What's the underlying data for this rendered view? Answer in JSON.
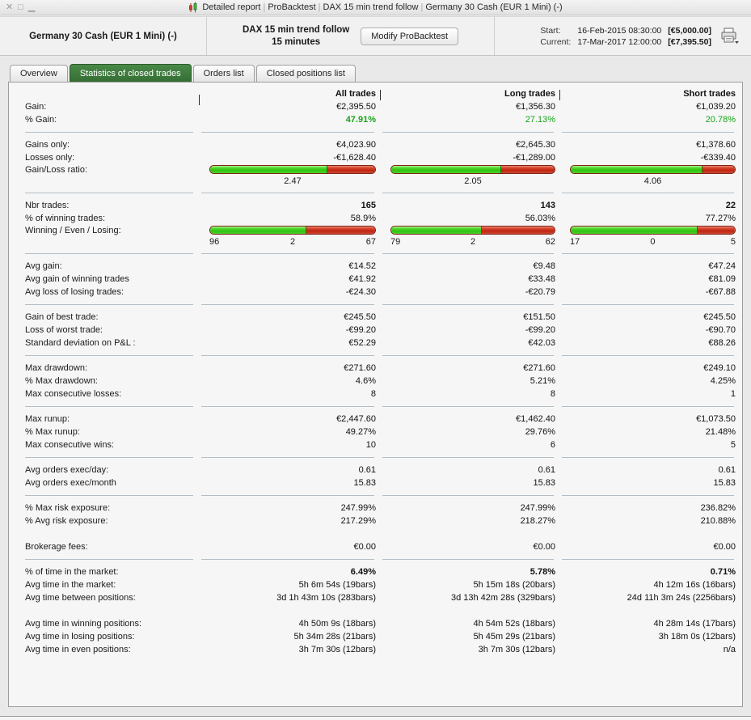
{
  "titlebar": {
    "window_controls": [
      "✕",
      "□",
      "▁"
    ],
    "title_parts": [
      "Detailed report",
      "ProBacktest",
      "DAX 15 min trend follow",
      "Germany 30 Cash (EUR 1 Mini) (-)"
    ]
  },
  "header": {
    "instrument": "Germany 30 Cash (EUR 1 Mini) (-)",
    "strategy_line1": "DAX 15 min trend follow",
    "strategy_line2": "15 minutes",
    "modify_button": "Modify ProBacktest",
    "start_label": "Start:",
    "start_datetime": "16-Feb-2015 08:30:00",
    "start_value": "[€5,000.00]",
    "current_label": "Current:",
    "current_datetime": "17-Mar-2017 12:00:00",
    "current_value": "[€7,395.50]"
  },
  "tabs": [
    {
      "label": "Overview",
      "active": false
    },
    {
      "label": "Statistics of closed trades",
      "active": true
    },
    {
      "label": "Orders list",
      "active": false
    },
    {
      "label": "Closed positions list",
      "active": false
    }
  ],
  "colors": {
    "active_tab_green": "#3c7b3b",
    "text_green": "#17a317",
    "bar_green": "#2fc410",
    "bar_red": "#c02511",
    "divider": "#b3bfc8"
  },
  "table": {
    "columns": [
      "All trades",
      "Long trades",
      "Short trades"
    ],
    "sections": [
      {
        "rows": [
          {
            "label": "Gain:",
            "values": [
              "€2,395.50",
              "€1,356.30",
              "€1,039.20"
            ]
          },
          {
            "label": "% Gain:",
            "values": [
              "47.91%",
              "27.13%",
              "20.78%"
            ],
            "cls": [
              "g b",
              "g",
              "g"
            ]
          }
        ]
      },
      {
        "rows": [
          {
            "label": "Gains only:",
            "values": [
              "€4,023.90",
              "€2,645.30",
              "€1,378.60"
            ]
          },
          {
            "label": "Losses only:",
            "values": [
              "-€1,628.40",
              "-€1,289.00",
              "-€339.40"
            ]
          },
          {
            "label": "Gain/Loss ratio:",
            "type": "ratio_bar",
            "values": [
              2.47,
              2.05,
              4.06
            ]
          }
        ]
      },
      {
        "rows": [
          {
            "label": "Nbr trades:",
            "values": [
              "165",
              "143",
              "22"
            ],
            "cls": [
              "b",
              "b",
              "b"
            ]
          },
          {
            "label": "% of winning trades:",
            "values": [
              "58.9%",
              "56.03%",
              "77.27%"
            ]
          },
          {
            "label": "Winning / Even / Losing:",
            "type": "wel_bar",
            "values": [
              [
                96,
                2,
                67
              ],
              [
                79,
                2,
                62
              ],
              [
                17,
                0,
                5
              ]
            ]
          }
        ]
      },
      {
        "rows": [
          {
            "label": "Avg gain:",
            "values": [
              "€14.52",
              "€9.48",
              "€47.24"
            ]
          },
          {
            "label": "Avg gain of winning trades",
            "values": [
              "€41.92",
              "€33.48",
              "€81.09"
            ]
          },
          {
            "label": "Avg loss of losing trades:",
            "values": [
              "-€24.30",
              "-€20.79",
              "-€67.88"
            ]
          }
        ]
      },
      {
        "rows": [
          {
            "label": "Gain of best trade:",
            "values": [
              "€245.50",
              "€151.50",
              "€245.50"
            ]
          },
          {
            "label": "Loss of worst trade:",
            "values": [
              "-€99.20",
              "-€99.20",
              "-€90.70"
            ]
          },
          {
            "label": "Standard deviation on P&L :",
            "values": [
              "€52.29",
              "€42.03",
              "€88.26"
            ]
          }
        ]
      },
      {
        "rows": [
          {
            "label": "Max drawdown:",
            "values": [
              "€271.60",
              "€271.60",
              "€249.10"
            ]
          },
          {
            "label": "% Max drawdown:",
            "values": [
              "4.6%",
              "5.21%",
              "4.25%"
            ]
          },
          {
            "label": "Max consecutive losses:",
            "values": [
              "8",
              "8",
              "1"
            ]
          }
        ]
      },
      {
        "rows": [
          {
            "label": "Max runup:",
            "values": [
              "€2,447.60",
              "€1,462.40",
              "€1,073.50"
            ]
          },
          {
            "label": "% Max runup:",
            "values": [
              "49.27%",
              "29.76%",
              "21.48%"
            ]
          },
          {
            "label": "Max consecutive wins:",
            "values": [
              "10",
              "6",
              "5"
            ]
          }
        ]
      },
      {
        "rows": [
          {
            "label": "Avg orders exec/day:",
            "values": [
              "0.61",
              "0.61",
              "0.61"
            ]
          },
          {
            "label": "Avg orders exec/month",
            "values": [
              "15.83",
              "15.83",
              "15.83"
            ]
          }
        ]
      },
      {
        "rows": [
          {
            "label": "% Max risk exposure:",
            "values": [
              "247.99%",
              "247.99%",
              "236.82%"
            ]
          },
          {
            "label": "% Avg risk exposure:",
            "values": [
              "217.29%",
              "218.27%",
              "210.88%"
            ]
          },
          {
            "type": "spacer"
          },
          {
            "label": "Brokerage fees:",
            "values": [
              "€0.00",
              "€0.00",
              "€0.00"
            ]
          }
        ]
      },
      {
        "rows": [
          {
            "label": "% of time in the market:",
            "values": [
              "6.49%",
              "5.78%",
              "0.71%"
            ],
            "cls": [
              "b",
              "b",
              "b"
            ]
          },
          {
            "label": "Avg time in the market:",
            "values": [
              "5h 6m 54s (19bars)",
              "5h 15m 18s (20bars)",
              "4h 12m 16s (16bars)"
            ]
          },
          {
            "label": "Avg time between positions:",
            "values": [
              "3d 1h 43m 10s (283bars)",
              "3d 13h 42m 28s (329bars)",
              "24d 11h 3m 24s (2256bars)"
            ]
          },
          {
            "type": "spacer"
          },
          {
            "label": "Avg time in winning positions:",
            "values": [
              "4h 50m 9s (18bars)",
              "4h 54m 52s (18bars)",
              "4h 28m 14s (17bars)"
            ]
          },
          {
            "label": "Avg time in losing positions:",
            "values": [
              "5h 34m 28s (21bars)",
              "5h 45m 29s (21bars)",
              "3h 18m 0s (12bars)"
            ]
          },
          {
            "label": "Avg time in even positions:",
            "values": [
              "3h 7m 30s (12bars)",
              "3h 7m 30s (12bars)",
              "n/a"
            ]
          }
        ]
      }
    ]
  }
}
